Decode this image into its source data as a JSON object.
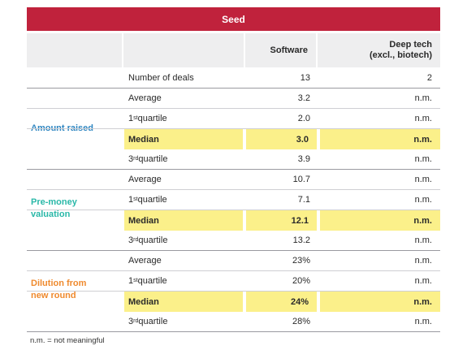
{
  "header": {
    "title": "Seed"
  },
  "columns": {
    "software": "Software",
    "deeptech_line1": "Deep tech",
    "deeptech_line2": "(excl., biotech)"
  },
  "deals": {
    "label": "Number of deals",
    "software": "13",
    "deeptech": "2"
  },
  "groups": [
    {
      "name_line1": "Amount raised",
      "name_line2": "",
      "rows": [
        {
          "label": "Average",
          "sup": "",
          "suffix": "",
          "software": "3.2",
          "deeptech": "n.m."
        },
        {
          "label": "1",
          "sup": "st",
          "suffix": " quartile",
          "software": "2.0",
          "deeptech": "n.m."
        },
        {
          "label": "Median",
          "sup": "",
          "suffix": "",
          "software": "3.0",
          "deeptech": "n.m."
        },
        {
          "label": "3",
          "sup": "rd",
          "suffix": " quartile",
          "software": "3.9",
          "deeptech": "n.m."
        }
      ]
    },
    {
      "name_line1": "Pre-money",
      "name_line2": "valuation",
      "rows": [
        {
          "label": "Average",
          "sup": "",
          "suffix": "",
          "software": "10.7",
          "deeptech": "n.m."
        },
        {
          "label": "1",
          "sup": "st",
          "suffix": " quartile",
          "software": "7.1",
          "deeptech": "n.m."
        },
        {
          "label": "Median",
          "sup": "",
          "suffix": "",
          "software": "12.1",
          "deeptech": "n.m."
        },
        {
          "label": "3",
          "sup": "rd",
          "suffix": " quartile",
          "software": "13.2",
          "deeptech": "n.m."
        }
      ]
    },
    {
      "name_line1": "Dilution from",
      "name_line2": "new round",
      "rows": [
        {
          "label": "Average",
          "sup": "",
          "suffix": "",
          "software": "23%",
          "deeptech": "n.m."
        },
        {
          "label": "1",
          "sup": "st",
          "suffix": " quartile",
          "software": "20%",
          "deeptech": "n.m."
        },
        {
          "label": "Median",
          "sup": "",
          "suffix": "",
          "software": "24%",
          "deeptech": "n.m."
        },
        {
          "label": "3",
          "sup": "rd",
          "suffix": " quartile",
          "software": "28%",
          "deeptech": "n.m."
        }
      ]
    }
  ],
  "footnote": "n.m. = not meaningful",
  "colors": {
    "banner": "#c0223c",
    "highlight": "#fbf08a",
    "amount": "#2e86c1",
    "premoney": "#2ab8a8",
    "dilution": "#ef8a2e"
  }
}
